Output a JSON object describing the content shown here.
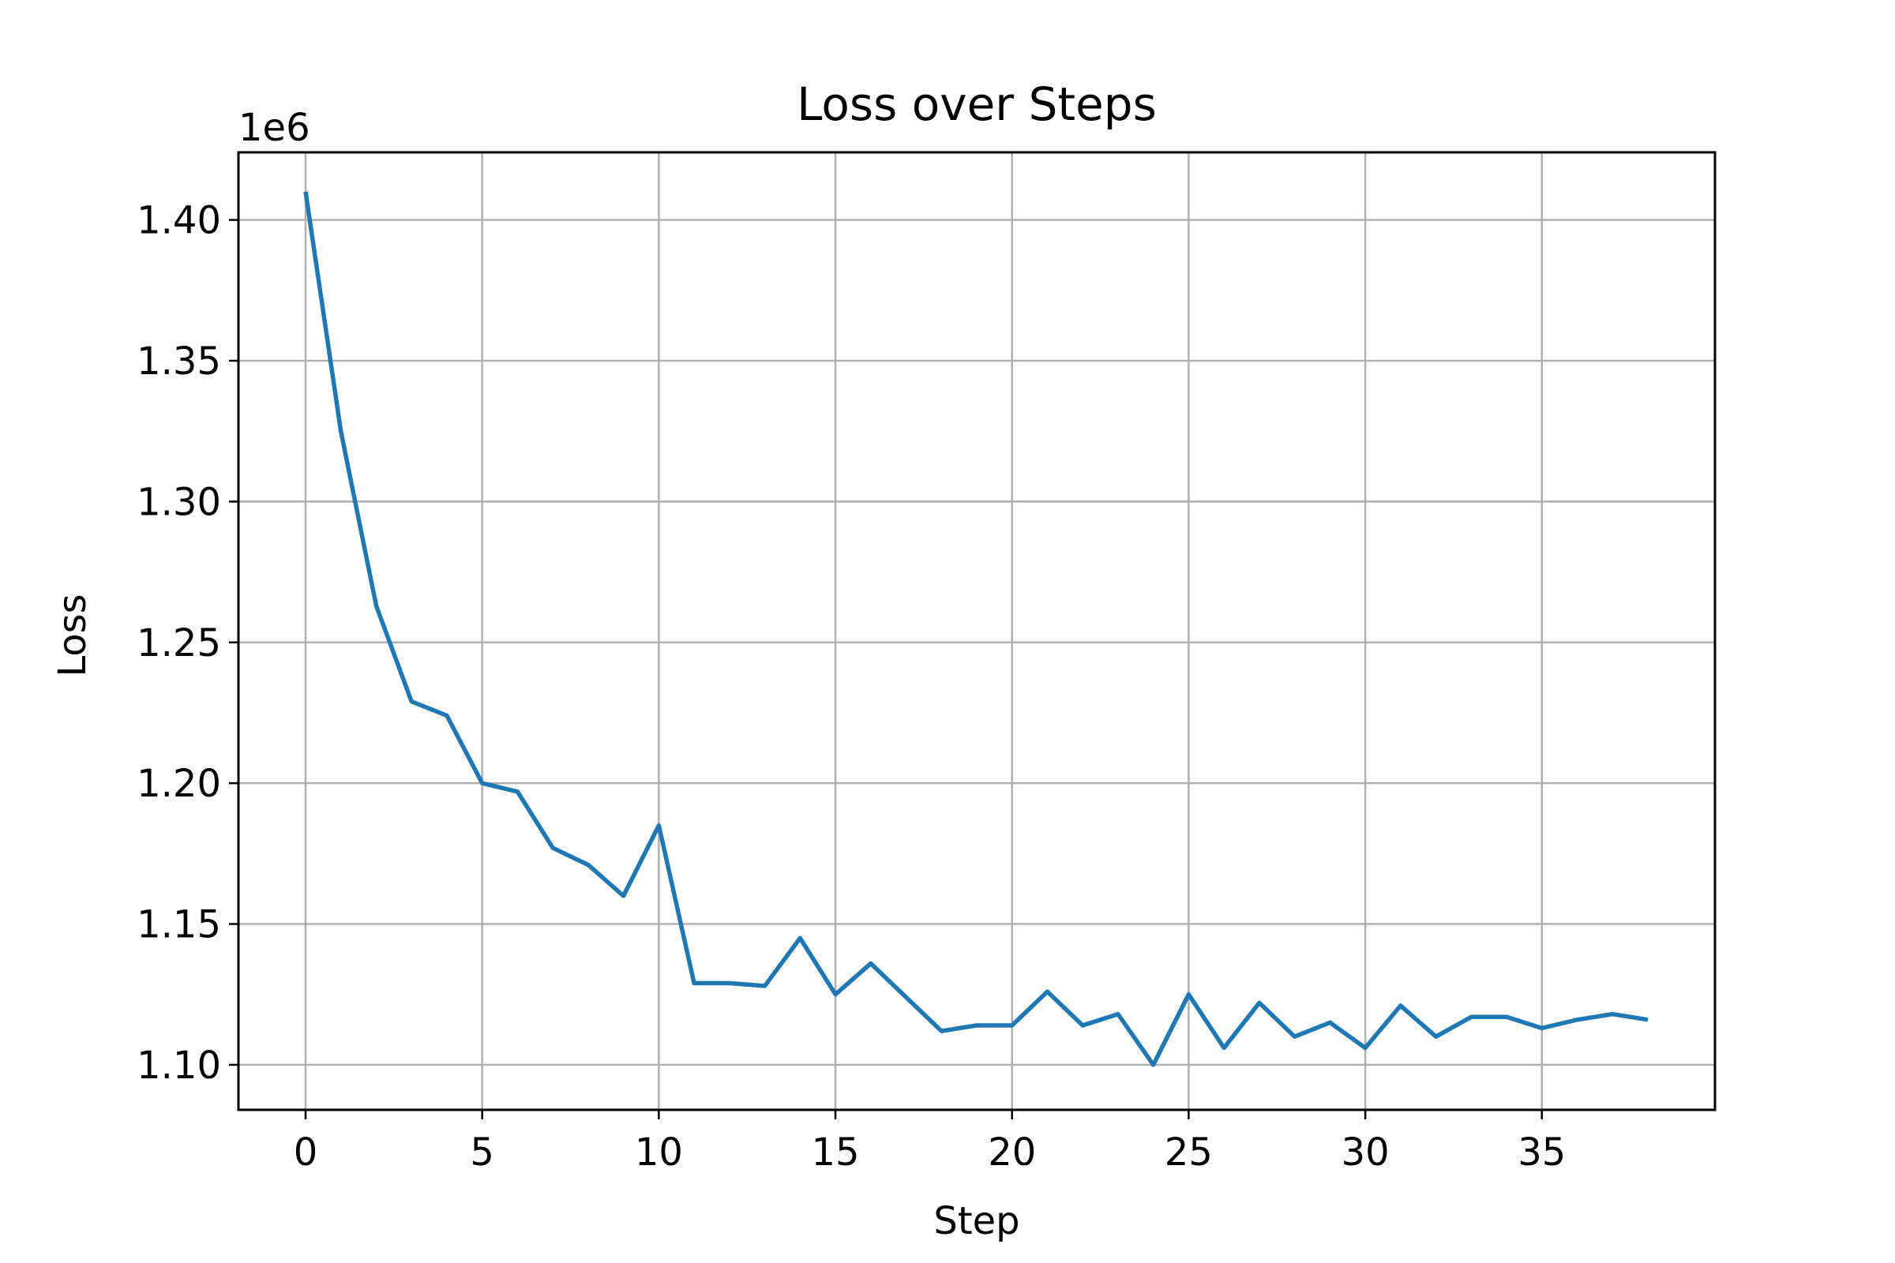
{
  "chart_data": {
    "type": "line",
    "title": "Loss over Steps",
    "xlabel": "Step",
    "ylabel": "Loss",
    "offset_label": "1e6",
    "xlim": [
      -1.9,
      39.9
    ],
    "ylim": [
      1.084,
      1.424
    ],
    "xticks": [
      0,
      5,
      10,
      15,
      20,
      25,
      30,
      35
    ],
    "yticks": [
      1.1,
      1.15,
      1.2,
      1.25,
      1.3,
      1.35,
      1.4
    ],
    "grid": true,
    "line_color": "#1f77b4",
    "series": [
      {
        "x": [
          0,
          1,
          2,
          3,
          4,
          5,
          6,
          7,
          8,
          9,
          10,
          11,
          12,
          13,
          14,
          15,
          16,
          17,
          18,
          19,
          20,
          21,
          22,
          23,
          24,
          25,
          26,
          27,
          28,
          29,
          30,
          31,
          32,
          33,
          34,
          35,
          36,
          37,
          38
        ],
        "values": [
          1.41,
          1.325,
          1.263,
          1.229,
          1.224,
          1.2,
          1.197,
          1.177,
          1.171,
          1.16,
          1.185,
          1.129,
          1.129,
          1.128,
          1.145,
          1.125,
          1.136,
          1.124,
          1.112,
          1.114,
          1.114,
          1.126,
          1.114,
          1.118,
          1.1,
          1.125,
          1.106,
          1.122,
          1.11,
          1.115,
          1.106,
          1.121,
          1.11,
          1.117,
          1.117,
          1.113,
          1.116,
          1.118,
          1.116
        ]
      }
    ]
  }
}
